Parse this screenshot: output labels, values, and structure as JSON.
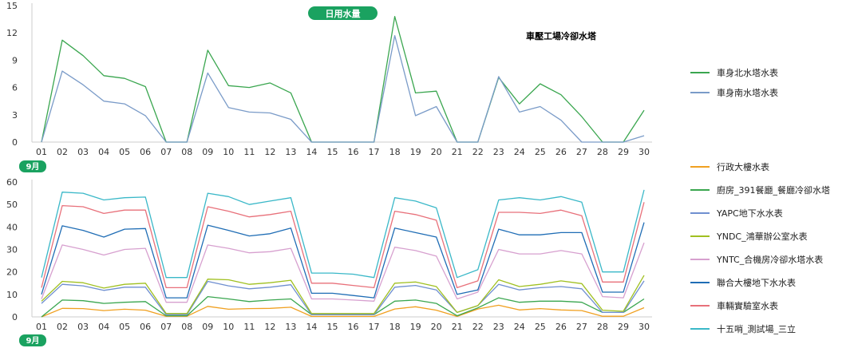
{
  "badge": {
    "label": "日用水量",
    "color": "#1aa260"
  },
  "month_label": "9月",
  "chart_data": [
    {
      "type": "line",
      "title": "車壓工場冷卻水塔",
      "x": [
        "01",
        "02",
        "03",
        "04",
        "05",
        "06",
        "07",
        "08",
        "09",
        "10",
        "11",
        "12",
        "13",
        "14",
        "15",
        "16",
        "17",
        "18",
        "19",
        "20",
        "21",
        "22",
        "23",
        "24",
        "25",
        "26",
        "27",
        "28",
        "29",
        "30"
      ],
      "ylim": [
        0,
        15
      ],
      "yticks": [
        0,
        3,
        6,
        9,
        12,
        15
      ],
      "grid": false,
      "legend": "right",
      "series": [
        {
          "name": "車身北水塔水表",
          "color": "#3aa64f",
          "values": [
            0,
            11.2,
            9.5,
            7.3,
            7.0,
            6.1,
            0,
            0,
            10.1,
            6.2,
            6.0,
            6.5,
            5.4,
            0,
            0,
            0,
            0,
            13.8,
            5.4,
            5.6,
            0,
            0,
            7.1,
            4.2,
            6.4,
            5.2,
            2.8,
            0,
            0,
            3.5
          ]
        },
        {
          "name": "車身南水塔水表",
          "color": "#7a9bc8",
          "values": [
            0,
            7.8,
            6.3,
            4.5,
            4.2,
            2.9,
            0,
            0,
            7.6,
            3.8,
            3.3,
            3.2,
            2.5,
            0,
            0,
            0,
            0,
            11.7,
            2.9,
            3.9,
            0,
            0,
            7.2,
            3.3,
            3.9,
            2.4,
            0,
            0,
            0,
            0.7
          ]
        }
      ]
    },
    {
      "type": "line",
      "title": "",
      "x": [
        "01",
        "02",
        "03",
        "04",
        "05",
        "06",
        "07",
        "08",
        "09",
        "10",
        "11",
        "12",
        "13",
        "14",
        "15",
        "16",
        "17",
        "18",
        "19",
        "20",
        "21",
        "22",
        "23",
        "24",
        "25",
        "26",
        "27",
        "28",
        "29",
        "30"
      ],
      "ylim": [
        0,
        60
      ],
      "yticks": [
        0,
        10,
        20,
        30,
        40,
        50,
        60
      ],
      "grid": false,
      "legend": "right",
      "series": [
        {
          "name": "行政大樓水表",
          "color": "#f0a020",
          "values": [
            0,
            3.8,
            3.7,
            2.8,
            3.4,
            3.0,
            0.3,
            0.3,
            4.7,
            3.4,
            3.7,
            3.8,
            4.3,
            0.2,
            0.2,
            0.2,
            0.2,
            3.5,
            4.5,
            3.0,
            0.2,
            3.5,
            5.2,
            3.1,
            3.7,
            3.1,
            2.8,
            0.3,
            0.3,
            4.1
          ]
        },
        {
          "name": "廚房_391餐廳_餐廳冷卻水塔",
          "color": "#3aa64f",
          "values": [
            0,
            7.5,
            7.2,
            6.0,
            6.5,
            6.8,
            0.5,
            0.5,
            9.0,
            8.0,
            6.8,
            7.5,
            8.0,
            1.0,
            1.0,
            1.0,
            1.0,
            7.0,
            7.5,
            6.0,
            0.5,
            4.0,
            8.5,
            6.5,
            7.0,
            7.0,
            6.5,
            2.0,
            2.0,
            8.0
          ]
        },
        {
          "name": "YAPC地下水水表",
          "color": "#6f8fd0",
          "values": [
            6,
            14.5,
            13.8,
            11.8,
            13.2,
            13.2,
            1,
            1,
            15.8,
            13.8,
            12.5,
            13.2,
            14.3,
            1,
            1,
            1,
            1,
            13.2,
            14,
            12,
            2,
            5,
            14.5,
            12,
            13,
            13.5,
            12.5,
            2,
            2,
            16
          ]
        },
        {
          "name": "YNDC_鴻華辦公室水表",
          "color": "#a0c020",
          "values": [
            7,
            15.8,
            15.2,
            12.8,
            14.5,
            15.0,
            1.5,
            1.5,
            16.8,
            16.5,
            14.5,
            15.2,
            16.3,
            1.5,
            1.5,
            1.5,
            1.5,
            15.0,
            15.5,
            13.5,
            2,
            5,
            16.5,
            13.5,
            14.5,
            16.0,
            14.8,
            3,
            2.5,
            18.5
          ]
        },
        {
          "name": "YNTC_合機房冷卻水塔水表",
          "color": "#d7a0cf",
          "values": [
            8,
            32,
            30,
            27.5,
            30,
            30.5,
            6.5,
            6.5,
            32,
            30.5,
            28.5,
            29,
            30.5,
            8,
            8,
            7.5,
            7,
            31,
            29.5,
            27,
            8,
            11,
            30,
            28,
            28,
            29.5,
            28,
            9,
            8.5,
            33
          ]
        },
        {
          "name": "聯合大樓地下水水表",
          "color": "#1f6db5",
          "values": [
            10,
            40.5,
            38.5,
            35.5,
            39,
            39.3,
            8.5,
            8.5,
            40.8,
            38.5,
            36,
            37,
            39.5,
            10.5,
            10.5,
            9.5,
            8.5,
            39.5,
            37.5,
            35.5,
            10,
            12,
            39,
            36.5,
            36.5,
            37.5,
            37.5,
            11,
            11,
            42
          ]
        },
        {
          "name": "車輛實驗室水表",
          "color": "#e8707a",
          "values": [
            13,
            49.5,
            49,
            46,
            47.5,
            47.5,
            13,
            13,
            49,
            47,
            44.5,
            45.5,
            47,
            15,
            15,
            14,
            13,
            47,
            45.5,
            43,
            13,
            16,
            46.5,
            46.5,
            46,
            47.5,
            45,
            15.5,
            15.5,
            51
          ]
        },
        {
          "name": "十五哨_測試場_三立",
          "color": "#3ab8c8",
          "values": [
            17.5,
            55.5,
            55,
            52,
            53,
            53.3,
            17.5,
            17.5,
            55,
            53.5,
            50,
            51.5,
            53,
            19.5,
            19.5,
            19,
            17.5,
            53,
            51.5,
            48.5,
            17.5,
            21,
            52,
            53,
            52,
            53.5,
            51,
            20,
            20,
            56.5
          ]
        }
      ]
    }
  ]
}
